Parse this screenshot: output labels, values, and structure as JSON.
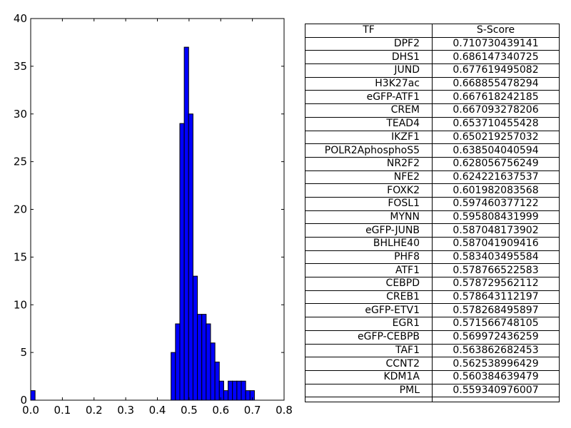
{
  "colors": {
    "bar_fill": "#0000ff",
    "bar_edge": "#000000",
    "axis": "#000000",
    "background": "#ffffff"
  },
  "chart_data": [
    {
      "type": "bar",
      "subtype": "histogram",
      "title": "",
      "xlabel": "",
      "ylabel": "",
      "xlim": [
        0.0,
        0.8
      ],
      "ylim": [
        0,
        40
      ],
      "xticks": [
        "0.0",
        "0.1",
        "0.2",
        "0.3",
        "0.4",
        "0.5",
        "0.6",
        "0.7",
        "0.8"
      ],
      "yticks": [
        "0",
        "5",
        "10",
        "15",
        "20",
        "25",
        "30",
        "35",
        "40"
      ],
      "grid": false,
      "bin_width": 0.01385,
      "bins": [
        {
          "x0": 0.0,
          "value": 1
        },
        {
          "x0": 0.4432,
          "value": 5
        },
        {
          "x0": 0.4571,
          "value": 8
        },
        {
          "x0": 0.4709,
          "value": 29
        },
        {
          "x0": 0.4848,
          "value": 37
        },
        {
          "x0": 0.4986,
          "value": 30
        },
        {
          "x0": 0.5125,
          "value": 13
        },
        {
          "x0": 0.5263,
          "value": 9
        },
        {
          "x0": 0.5402,
          "value": 9
        },
        {
          "x0": 0.554,
          "value": 8
        },
        {
          "x0": 0.5679,
          "value": 6
        },
        {
          "x0": 0.5817,
          "value": 4
        },
        {
          "x0": 0.5956,
          "value": 2
        },
        {
          "x0": 0.6094,
          "value": 1
        },
        {
          "x0": 0.6233,
          "value": 2
        },
        {
          "x0": 0.6371,
          "value": 2
        },
        {
          "x0": 0.651,
          "value": 2
        },
        {
          "x0": 0.6648,
          "value": 2
        },
        {
          "x0": 0.6787,
          "value": 1
        },
        {
          "x0": 0.6925,
          "value": 1
        }
      ]
    },
    {
      "type": "table",
      "columns": [
        "TF",
        "S-Score"
      ],
      "rows": [
        [
          "DPF2",
          "0.710730439141"
        ],
        [
          "DHS1",
          "0.686147340725"
        ],
        [
          "JUND",
          "0.677619495082"
        ],
        [
          "H3K27ac",
          "0.668855478294"
        ],
        [
          "eGFP-ATF1",
          "0.667618242185"
        ],
        [
          "CREM",
          "0.667093278206"
        ],
        [
          "TEAD4",
          "0.653710455428"
        ],
        [
          "IKZF1",
          "0.650219257032"
        ],
        [
          "POLR2AphosphoS5",
          "0.638504040594"
        ],
        [
          "NR2F2",
          "0.628056756249"
        ],
        [
          "NFE2",
          "0.624221637537"
        ],
        [
          "FOXK2",
          "0.601982083568"
        ],
        [
          "FOSL1",
          "0.597460377122"
        ],
        [
          "MYNN",
          "0.595808431999"
        ],
        [
          "eGFP-JUNB",
          "0.587048173902"
        ],
        [
          "BHLHE40",
          "0.587041909416"
        ],
        [
          "PHF8",
          "0.583403495584"
        ],
        [
          "ATF1",
          "0.578766522583"
        ],
        [
          "CEBPD",
          "0.578729562112"
        ],
        [
          "CREB1",
          "0.578643112197"
        ],
        [
          "eGFP-ETV1",
          "0.578268495897"
        ],
        [
          "EGR1",
          "0.571566748105"
        ],
        [
          "eGFP-CEBPB",
          "0.569972436259"
        ],
        [
          "TAF1",
          "0.563862682453"
        ],
        [
          "CCNT2",
          "0.562538996429"
        ],
        [
          "KDM1A",
          "0.560384639479"
        ],
        [
          "PML",
          "0.559340976007"
        ]
      ]
    }
  ]
}
